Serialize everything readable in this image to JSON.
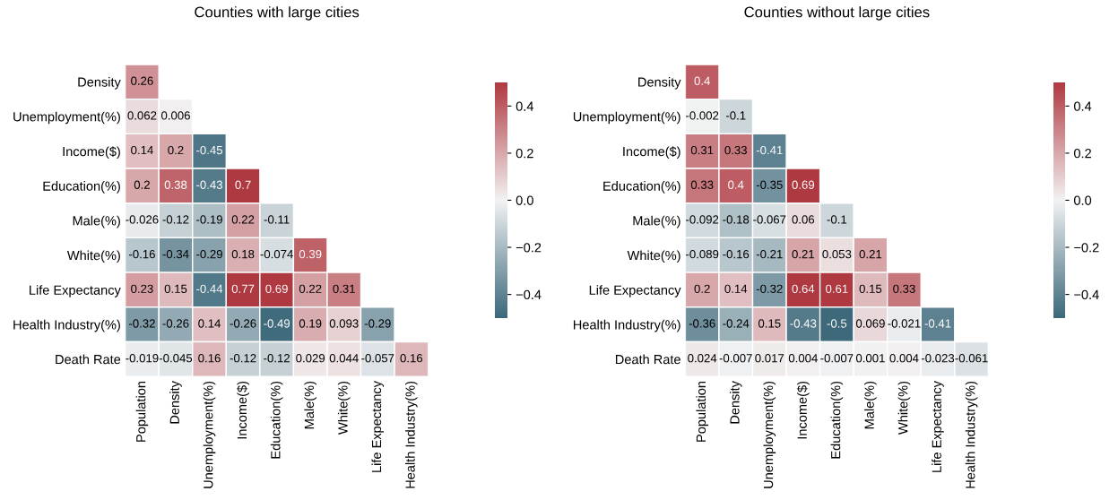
{
  "chart_data": [
    {
      "type": "heatmap",
      "title": "Counties with large cities",
      "categories": [
        "Population",
        "Density",
        "Unemployment(%)",
        "Income($)",
        "Education(%)",
        "Male(%)",
        "White(%)",
        "Life Expectancy",
        "Health Industry(%)"
      ],
      "y_categories": [
        "Density",
        "Unemployment(%)",
        "Income($)",
        "Education(%)",
        "Male(%)",
        "White(%)",
        "Life Expectancy",
        "Health Industry(%)",
        "Death Rate"
      ],
      "cells": [
        [
          0.26,
          null,
          null,
          null,
          null,
          null,
          null,
          null,
          null
        ],
        [
          0.062,
          0.006,
          null,
          null,
          null,
          null,
          null,
          null,
          null
        ],
        [
          0.14,
          0.2,
          -0.45,
          null,
          null,
          null,
          null,
          null,
          null
        ],
        [
          0.2,
          0.38,
          -0.43,
          0.7,
          null,
          null,
          null,
          null,
          null
        ],
        [
          -0.026,
          -0.12,
          -0.19,
          0.22,
          -0.11,
          null,
          null,
          null,
          null
        ],
        [
          -0.16,
          -0.34,
          -0.29,
          0.18,
          -0.074,
          0.39,
          null,
          null,
          null
        ],
        [
          0.23,
          0.15,
          -0.44,
          0.77,
          0.69,
          0.22,
          0.31,
          null,
          null
        ],
        [
          -0.32,
          -0.26,
          0.14,
          -0.26,
          -0.49,
          0.19,
          0.093,
          -0.29,
          null
        ],
        [
          -0.019,
          -0.045,
          0.16,
          -0.12,
          -0.12,
          0.029,
          0.044,
          -0.057,
          0.16
        ]
      ],
      "data_labels": true,
      "clim": [
        -0.5,
        0.5
      ],
      "cticks": [
        {
          "value": -0.4,
          "label": "−0.4"
        },
        {
          "value": -0.2,
          "label": "−0.2"
        },
        {
          "value": 0,
          "label": "0.0"
        },
        {
          "value": 0.2,
          "label": "0.2"
        },
        {
          "value": 0.4,
          "label": "0.4"
        }
      ]
    },
    {
      "type": "heatmap",
      "title": "Counties without large cities",
      "categories": [
        "Population",
        "Density",
        "Unemployment(%)",
        "Income($)",
        "Education(%)",
        "Male(%)",
        "White(%)",
        "Life Expectancy",
        "Health Industry(%)"
      ],
      "y_categories": [
        "Density",
        "Unemployment(%)",
        "Income($)",
        "Education(%)",
        "Male(%)",
        "White(%)",
        "Life Expectancy",
        "Health Industry(%)",
        "Death Rate"
      ],
      "cells": [
        [
          0.4,
          null,
          null,
          null,
          null,
          null,
          null,
          null,
          null
        ],
        [
          -0.002,
          -0.1,
          null,
          null,
          null,
          null,
          null,
          null,
          null
        ],
        [
          0.31,
          0.33,
          -0.41,
          null,
          null,
          null,
          null,
          null,
          null
        ],
        [
          0.33,
          0.4,
          -0.35,
          0.69,
          null,
          null,
          null,
          null,
          null
        ],
        [
          -0.092,
          -0.18,
          -0.067,
          0.06,
          -0.1,
          null,
          null,
          null,
          null
        ],
        [
          -0.089,
          -0.16,
          -0.21,
          0.21,
          0.053,
          0.21,
          null,
          null,
          null
        ],
        [
          0.2,
          0.14,
          -0.32,
          0.64,
          0.61,
          0.15,
          0.33,
          null,
          null
        ],
        [
          -0.36,
          -0.24,
          0.15,
          -0.43,
          -0.5,
          0.069,
          -0.021,
          -0.41,
          null
        ],
        [
          0.024,
          -0.007,
          0.017,
          0.004,
          -0.007,
          0.001,
          0.004,
          -0.023,
          -0.061
        ]
      ],
      "data_labels": true,
      "clim": [
        -0.5,
        0.5
      ],
      "cticks": [
        {
          "value": -0.4,
          "label": "−0.4"
        },
        {
          "value": -0.2,
          "label": "−0.2"
        },
        {
          "value": 0,
          "label": "0.0"
        },
        {
          "value": 0.2,
          "label": "0.2"
        },
        {
          "value": 0.4,
          "label": "0.4"
        }
      ]
    }
  ]
}
